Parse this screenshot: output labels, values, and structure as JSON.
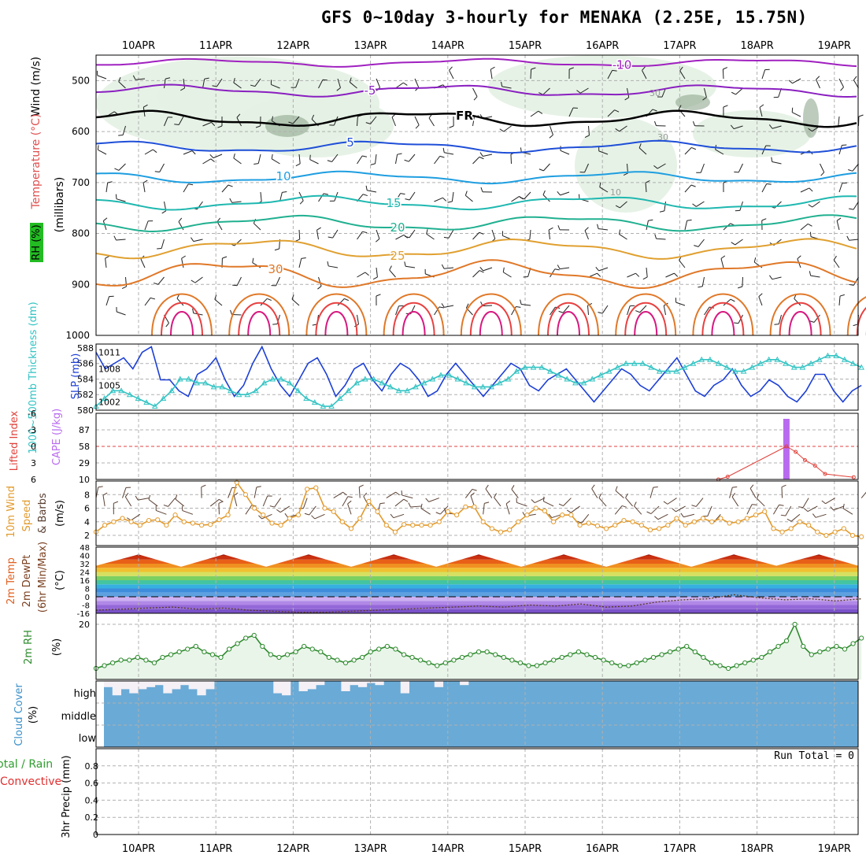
{
  "title": "GFS 0~10day 3-hourly for MENAKA (2.25E, 15.75N)",
  "colors": {
    "rh_shade": "#e3f1e3",
    "rh_dark": "#8fa88f",
    "slp": "#1c3fd6",
    "thickness": "#33c3c3",
    "cape": "#b96bf0",
    "lifted": "#e0413a",
    "wind10": "#e29a2c",
    "barb": "#5a4033",
    "rh2m": "#2e8b2e",
    "cloud": "#6aaad6",
    "cloud_gap": "#f4f0f6",
    "grid": "#b0b0b0"
  },
  "chart_data": [
    {
      "panel": "upper_air",
      "type": "contour",
      "xlabel_top": [
        "10APR",
        "11APR",
        "12APR",
        "13APR",
        "14APR",
        "15APR",
        "16APR",
        "17APR",
        "18APR",
        "19APR"
      ],
      "ylabel": {
        "wind": "Wind (m/s)",
        "temp": "Temperature (°C)",
        "rh": "RH (%)",
        "units": "(millibars)"
      },
      "yticks": [
        "500",
        "600",
        "700",
        "800",
        "900",
        "1000"
      ],
      "ylim": [
        1000,
        450
      ],
      "isotherms": [
        {
          "label": "-10",
          "color": "#a020c0",
          "level": 465,
          "wave": 4
        },
        {
          "label": "-5",
          "color": "#8a1fc0",
          "level": 520,
          "wave": 6
        },
        {
          "label": "FR",
          "color": "#000000",
          "level": 575,
          "wave": 8
        },
        {
          "label": "5",
          "color": "#1f4fd8",
          "level": 630,
          "wave": 6
        },
        {
          "label": "10",
          "color": "#1e9ee0",
          "level": 690,
          "wave": 6
        },
        {
          "label": "15",
          "color": "#1fb8b0",
          "level": 740,
          "wave": 7
        },
        {
          "label": "20",
          "color": "#20b090",
          "level": 780,
          "wave": 8
        },
        {
          "label": "25",
          "color": "#e0a030",
          "level": 830,
          "wave": 10
        },
        {
          "label": "30",
          "color": "#e07828",
          "level": 880,
          "wave": 14
        }
      ],
      "rh_labels": [
        "30",
        "30",
        "10"
      ]
    },
    {
      "panel": "slp_thickness",
      "type": "line",
      "ylabel_left": "1000~500mb Thickness (dm)",
      "ylabel_right": "SLP (mb)",
      "left_ticks": [
        "588",
        "586",
        "584",
        "582",
        "580"
      ],
      "right_ticks": [
        "1011",
        "1008",
        "1005",
        "1002"
      ],
      "series": [
        {
          "name": "SLP (mb)",
          "values": [
            1011,
            1008,
            1009,
            1010,
            1008,
            1011,
            1012,
            1006,
            1006,
            1004,
            1003,
            1007,
            1008,
            1010,
            1006,
            1003,
            1005,
            1009,
            1012,
            1008,
            1005,
            1003,
            1006,
            1009,
            1010,
            1007,
            1003,
            1005,
            1008,
            1009,
            1006,
            1004,
            1007,
            1009,
            1008,
            1006,
            1003,
            1004,
            1007,
            1009,
            1007,
            1005,
            1003,
            1005,
            1007,
            1009,
            1008,
            1005,
            1004,
            1006,
            1007,
            1008,
            1006,
            1004,
            1002,
            1004,
            1006,
            1008,
            1007,
            1005,
            1004,
            1006,
            1008,
            1010,
            1007,
            1004,
            1003,
            1005,
            1006,
            1008,
            1005,
            1003,
            1004,
            1006,
            1005,
            1003,
            1002,
            1004,
            1007,
            1007,
            1004,
            1002,
            1004,
            1005
          ]
        },
        {
          "name": "1000~500mb Thickness (dm)",
          "values": [
            580.5,
            581.5,
            582.5,
            582.5,
            582,
            581.5,
            581,
            580.5,
            581.5,
            582.5,
            584,
            584,
            583.5,
            583.5,
            583,
            583,
            582.5,
            582,
            582,
            582.5,
            583.5,
            584,
            584,
            583.5,
            582.5,
            581.5,
            581,
            580.5,
            580.5,
            581.5,
            582.5,
            583.5,
            584,
            584,
            583.5,
            583,
            582.5,
            582.5,
            583,
            583.5,
            584,
            584.5,
            584.5,
            584,
            583.5,
            583,
            583,
            583,
            583.5,
            584,
            585,
            585.5,
            585.5,
            585.5,
            585,
            584.5,
            584,
            583.5,
            583.5,
            584,
            584.5,
            585,
            585.5,
            586,
            586,
            586,
            585.5,
            585,
            585,
            585,
            585.5,
            586,
            586.5,
            586.5,
            586,
            585.5,
            585,
            585,
            585.5,
            586,
            586.5,
            586.5,
            586,
            585.5,
            585.5,
            586,
            586.5,
            587,
            587,
            586.5,
            586,
            585.5
          ]
        }
      ]
    },
    {
      "panel": "cape_li",
      "type": "bar",
      "ylabel_left": "Lifted Index",
      "ylabel_right": "CAPE (J/kg)",
      "left_ticks": [
        "-6",
        "-3",
        "0",
        "3",
        "6"
      ],
      "right_ticks": [
        "87",
        "58",
        "29",
        "10"
      ],
      "cape_bar": {
        "day_index": 8.38,
        "value": 116
      },
      "lifted_index": [
        {
          "t": 7.5,
          "v": 6.0
        },
        {
          "t": 7.62,
          "v": 5.5
        },
        {
          "t": 8.38,
          "v": 0.0
        },
        {
          "t": 8.5,
          "v": 1.0
        },
        {
          "t": 8.62,
          "v": 2.5
        },
        {
          "t": 8.75,
          "v": 3.5
        },
        {
          "t": 8.88,
          "v": 5.0
        },
        {
          "t": 9.25,
          "v": 5.6
        }
      ]
    },
    {
      "panel": "wind10m",
      "type": "line",
      "ylabel": "10m Wind Speed & Barbs (m/s)",
      "ticks": [
        "8",
        "6",
        "4",
        "2"
      ],
      "series": [
        {
          "name": "10m Wind Speed",
          "values": [
            2.5,
            3.5,
            4.0,
            4.5,
            4.0,
            3.5,
            4.2,
            4.3,
            3.5,
            5.0,
            4.0,
            3.8,
            3.5,
            3.6,
            4.3,
            5.0,
            9.8,
            8.0,
            6.0,
            5.0,
            3.8,
            3.5,
            4.5,
            5.0,
            8.8,
            9.0,
            6.0,
            5.5,
            4.0,
            3.0,
            4.5,
            7.0,
            5.5,
            3.5,
            2.5,
            3.6,
            3.5,
            3.5,
            3.5,
            4.0,
            5.5,
            5.0,
            6.2,
            6.2,
            4.0,
            3.0,
            2.5,
            2.8,
            4.0,
            5.0,
            6.0,
            5.6,
            4.0,
            5.0,
            5.0,
            3.5,
            3.8,
            3.4,
            3.0,
            3.5,
            4.2,
            4.0,
            3.5,
            2.8,
            3.0,
            3.5,
            4.5,
            3.5,
            4.0,
            4.5,
            4.0,
            4.5,
            3.8,
            4.0,
            4.5,
            5.0,
            5.5,
            3.0,
            2.5,
            3.0,
            4.0,
            3.5,
            2.5,
            2.0,
            2.5,
            3.0,
            2.0,
            1.8
          ]
        }
      ]
    },
    {
      "panel": "temp2m",
      "type": "area",
      "ylabel": "2m Temp 2m DewPt (6hr Min/Max) (°C)",
      "ticks": [
        "48",
        "40",
        "32",
        "24",
        "16",
        "8",
        "0",
        "-8",
        "-16"
      ],
      "series": [
        {
          "name": "2m Temp max",
          "values": [
            30,
            41,
            29,
            41,
            29,
            41,
            29,
            41,
            29,
            41,
            29,
            41,
            29,
            41,
            29,
            41,
            30,
            41,
            29
          ]
        },
        {
          "name": "2m DewPt",
          "values": [
            -13,
            -12,
            -11,
            -10,
            -12,
            -11,
            -13,
            -14,
            -15,
            -15,
            -14,
            -13,
            -12,
            -11,
            -10,
            -9,
            -10,
            -8,
            -9,
            -7,
            -10,
            -9,
            -5,
            -3,
            -2,
            2,
            -1,
            -3,
            -2,
            -4,
            -2
          ]
        }
      ]
    },
    {
      "panel": "rh2m",
      "type": "line",
      "ylabel": "2m RH (%)",
      "ticks": [
        "20"
      ],
      "series": [
        {
          "name": "2m RH",
          "values": [
            4,
            5,
            6,
            7,
            7,
            8,
            7,
            6,
            8,
            9,
            10,
            11,
            12,
            10,
            9,
            8,
            11,
            13,
            15,
            16,
            12,
            9,
            8,
            9,
            10,
            12,
            11,
            10,
            8,
            7,
            6,
            7,
            8,
            10,
            11,
            12,
            11,
            9,
            8,
            7,
            6,
            5,
            6,
            7,
            8,
            9,
            10,
            10,
            9,
            8,
            7,
            6,
            5,
            5,
            6,
            7,
            8,
            9,
            10,
            9,
            8,
            7,
            6,
            5,
            5,
            6,
            7,
            8,
            9,
            10,
            11,
            12,
            10,
            8,
            6,
            5,
            4,
            5,
            6,
            7,
            8,
            10,
            12,
            14,
            20,
            12,
            9,
            10,
            11,
            12,
            11,
            13,
            15
          ]
        }
      ]
    },
    {
      "panel": "cloud",
      "type": "bar",
      "ylabel": "Cloud Cover (%)",
      "categories": [
        "high",
        "middle",
        "low"
      ],
      "high_cover": [
        70,
        30,
        60,
        40,
        60,
        70,
        80,
        40,
        60,
        80,
        60,
        30,
        60,
        100,
        100,
        100,
        100,
        100,
        100,
        100,
        40,
        30,
        100,
        50,
        60,
        80,
        100,
        100,
        50,
        80,
        70,
        90,
        80,
        100,
        100,
        40,
        100,
        100,
        100,
        70,
        100,
        100,
        80,
        100,
        100,
        100,
        100,
        100,
        100,
        100,
        100,
        100,
        100,
        100,
        100,
        100,
        100,
        100,
        100,
        100,
        100,
        100,
        100,
        100,
        100,
        100,
        100,
        100,
        100,
        100,
        100,
        100,
        100,
        100,
        100,
        100,
        100,
        100,
        100,
        100,
        100,
        100,
        100,
        100,
        100,
        100,
        100,
        100,
        100
      ]
    },
    {
      "panel": "precip",
      "type": "bar",
      "ylabel": "3hr Precip (mm)",
      "ylabel_extra": [
        "Total / Rain",
        "Convective"
      ],
      "ticks": [
        "0.8",
        "0.6",
        "0.4",
        "0.2",
        "0"
      ],
      "ylim": [
        0,
        1
      ],
      "annotation": "Run Total = 0",
      "values": []
    }
  ],
  "xlabel_bottom": [
    "10APR",
    "11APR",
    "12APR",
    "13APR",
    "14APR",
    "15APR",
    "16APR",
    "17APR",
    "18APR",
    "19APR"
  ]
}
